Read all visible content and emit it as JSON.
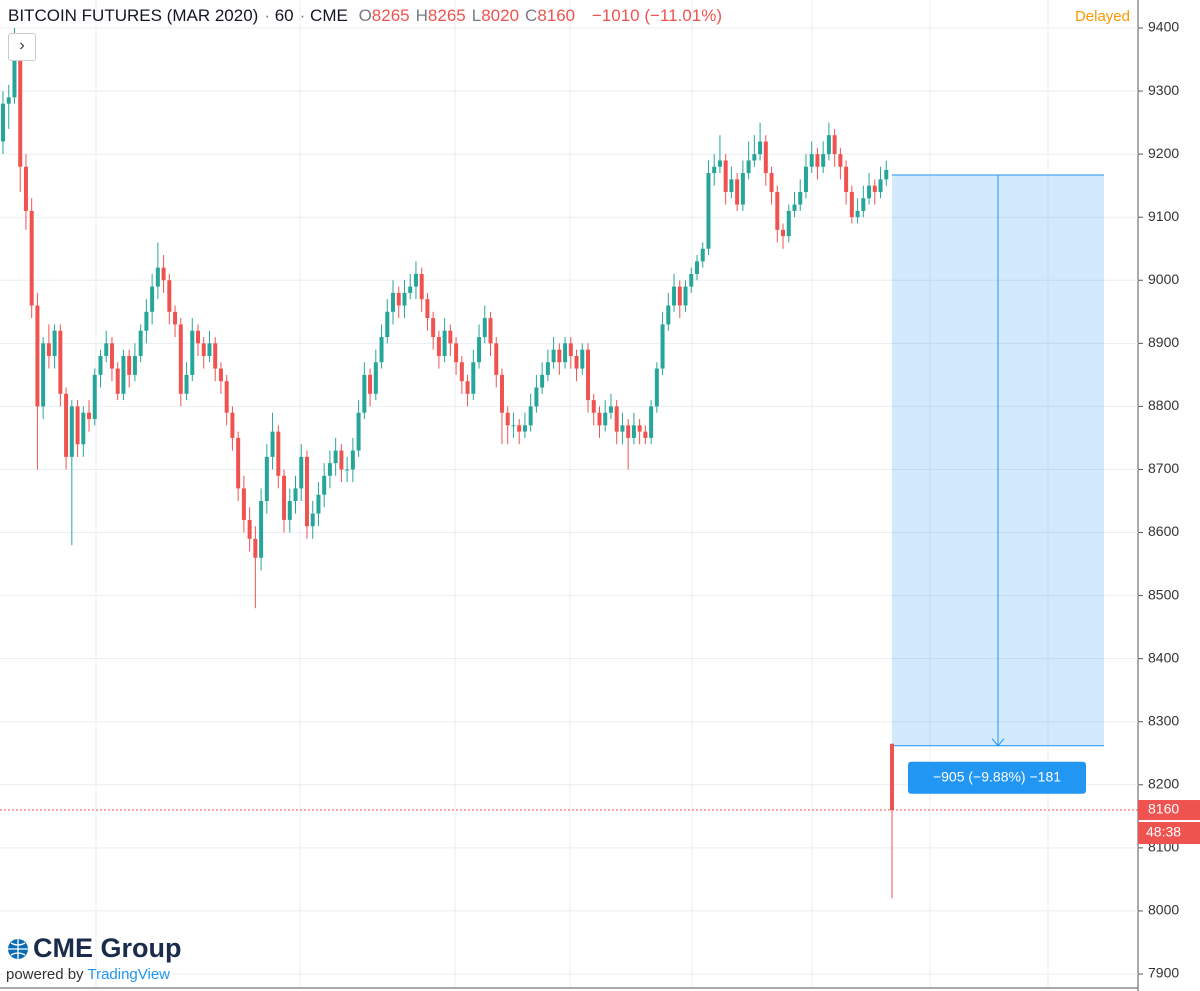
{
  "chart_data": {
    "type": "candlestick",
    "title": "BITCOIN FUTURES (MAR 2020)",
    "interval": "60",
    "exchange": "CME",
    "legend_ohlc": [
      {
        "key": "O",
        "value": 8265
      },
      {
        "key": "H",
        "value": 8265
      },
      {
        "key": "L",
        "value": 8020
      },
      {
        "key": "C",
        "value": 8160
      }
    ],
    "change": "−1010 (−11.01%)",
    "status": "Delayed",
    "countdown": "48:38",
    "logo": "CME Group",
    "powered_by": "powered by",
    "platform": "TradingView",
    "up_color": "#26a69a",
    "down_color": "#ef5350",
    "ylim": [
      7900,
      9400
    ],
    "yticks": [
      7900,
      8000,
      8100,
      8200,
      8300,
      8400,
      8500,
      8600,
      8700,
      8800,
      8900,
      9000,
      9100,
      9200,
      9300,
      9400
    ],
    "grid": true,
    "measure": {
      "from": 9167,
      "to": 8262,
      "label": "−905 (−9.88%) −181"
    },
    "ohlc": [
      [
        9220,
        9300,
        9200,
        9280
      ],
      [
        9280,
        9310,
        9240,
        9290
      ],
      [
        9290,
        9400,
        9280,
        9360
      ],
      [
        9360,
        9370,
        9140,
        9180
      ],
      [
        9180,
        9200,
        9080,
        9110
      ],
      [
        9110,
        9130,
        8940,
        8960
      ],
      [
        8960,
        8980,
        8700,
        8800
      ],
      [
        8800,
        8910,
        8780,
        8900
      ],
      [
        8900,
        8930,
        8860,
        8880
      ],
      [
        8880,
        8930,
        8860,
        8920
      ],
      [
        8920,
        8930,
        8800,
        8820
      ],
      [
        8820,
        8830,
        8700,
        8720
      ],
      [
        8720,
        8810,
        8580,
        8800
      ],
      [
        8800,
        8810,
        8720,
        8740
      ],
      [
        8740,
        8800,
        8720,
        8790
      ],
      [
        8790,
        8810,
        8760,
        8780
      ],
      [
        8780,
        8860,
        8770,
        8850
      ],
      [
        8850,
        8890,
        8830,
        8880
      ],
      [
        8880,
        8920,
        8870,
        8900
      ],
      [
        8900,
        8910,
        8840,
        8860
      ],
      [
        8860,
        8870,
        8810,
        8820
      ],
      [
        8820,
        8890,
        8810,
        8880
      ],
      [
        8880,
        8890,
        8830,
        8850
      ],
      [
        8850,
        8900,
        8840,
        8880
      ],
      [
        8880,
        8930,
        8870,
        8920
      ],
      [
        8920,
        8970,
        8900,
        8950
      ],
      [
        8950,
        9010,
        8930,
        8990
      ],
      [
        8990,
        9060,
        8970,
        9020
      ],
      [
        9020,
        9040,
        8980,
        9000
      ],
      [
        9000,
        9010,
        8930,
        8950
      ],
      [
        8950,
        8960,
        8910,
        8930
      ],
      [
        8930,
        8940,
        8800,
        8820
      ],
      [
        8820,
        8870,
        8810,
        8850
      ],
      [
        8850,
        8940,
        8840,
        8920
      ],
      [
        8920,
        8930,
        8880,
        8900
      ],
      [
        8900,
        8910,
        8860,
        8880
      ],
      [
        8880,
        8920,
        8870,
        8900
      ],
      [
        8900,
        8910,
        8840,
        8860
      ],
      [
        8860,
        8870,
        8820,
        8840
      ],
      [
        8840,
        8850,
        8770,
        8790
      ],
      [
        8790,
        8800,
        8730,
        8750
      ],
      [
        8750,
        8760,
        8650,
        8670
      ],
      [
        8670,
        8690,
        8600,
        8620
      ],
      [
        8620,
        8640,
        8570,
        8590
      ],
      [
        8590,
        8610,
        8480,
        8560
      ],
      [
        8560,
        8670,
        8540,
        8650
      ],
      [
        8650,
        8740,
        8630,
        8720
      ],
      [
        8720,
        8790,
        8700,
        8760
      ],
      [
        8760,
        8770,
        8670,
        8690
      ],
      [
        8690,
        8700,
        8600,
        8620
      ],
      [
        8620,
        8670,
        8600,
        8650
      ],
      [
        8650,
        8690,
        8630,
        8670
      ],
      [
        8670,
        8740,
        8650,
        8720
      ],
      [
        8720,
        8730,
        8590,
        8610
      ],
      [
        8610,
        8650,
        8590,
        8630
      ],
      [
        8630,
        8680,
        8610,
        8660
      ],
      [
        8660,
        8710,
        8640,
        8690
      ],
      [
        8690,
        8730,
        8670,
        8710
      ],
      [
        8710,
        8750,
        8690,
        8730
      ],
      [
        8730,
        8740,
        8680,
        8700
      ],
      [
        8700,
        8720,
        8680,
        8700
      ],
      [
        8700,
        8750,
        8680,
        8730
      ],
      [
        8730,
        8810,
        8720,
        8790
      ],
      [
        8790,
        8870,
        8780,
        8850
      ],
      [
        8850,
        8860,
        8800,
        8820
      ],
      [
        8820,
        8890,
        8810,
        8870
      ],
      [
        8870,
        8930,
        8860,
        8910
      ],
      [
        8910,
        8970,
        8900,
        8950
      ],
      [
        8950,
        9000,
        8930,
        8980
      ],
      [
        8980,
        8990,
        8940,
        8960
      ],
      [
        8960,
        9000,
        8940,
        8980
      ],
      [
        8980,
        9010,
        8970,
        8990
      ],
      [
        8990,
        9030,
        8970,
        9010
      ],
      [
        9010,
        9020,
        8950,
        8970
      ],
      [
        8970,
        8980,
        8920,
        8940
      ],
      [
        8940,
        8950,
        8890,
        8910
      ],
      [
        8910,
        8920,
        8860,
        8880
      ],
      [
        8880,
        8940,
        8870,
        8920
      ],
      [
        8920,
        8930,
        8880,
        8900
      ],
      [
        8900,
        8910,
        8850,
        8870
      ],
      [
        8870,
        8880,
        8820,
        8840
      ],
      [
        8840,
        8850,
        8800,
        8820
      ],
      [
        8820,
        8890,
        8810,
        8870
      ],
      [
        8870,
        8930,
        8860,
        8910
      ],
      [
        8910,
        8960,
        8900,
        8940
      ],
      [
        8940,
        8950,
        8880,
        8900
      ],
      [
        8900,
        8910,
        8830,
        8850
      ],
      [
        8850,
        8860,
        8740,
        8790
      ],
      [
        8790,
        8800,
        8740,
        8770
      ],
      [
        8770,
        8790,
        8750,
        8770
      ],
      [
        8770,
        8780,
        8740,
        8760
      ],
      [
        8760,
        8790,
        8750,
        8770
      ],
      [
        8770,
        8820,
        8760,
        8800
      ],
      [
        8800,
        8850,
        8790,
        8830
      ],
      [
        8830,
        8870,
        8820,
        8850
      ],
      [
        8850,
        8890,
        8840,
        8870
      ],
      [
        8870,
        8910,
        8860,
        8890
      ],
      [
        8890,
        8900,
        8850,
        8870
      ],
      [
        8870,
        8910,
        8860,
        8900
      ],
      [
        8900,
        8910,
        8860,
        8880
      ],
      [
        8880,
        8890,
        8840,
        8860
      ],
      [
        8860,
        8900,
        8850,
        8890
      ],
      [
        8890,
        8900,
        8790,
        8810
      ],
      [
        8810,
        8820,
        8770,
        8790
      ],
      [
        8790,
        8800,
        8750,
        8770
      ],
      [
        8770,
        8810,
        8760,
        8790
      ],
      [
        8790,
        8820,
        8780,
        8800
      ],
      [
        8800,
        8810,
        8740,
        8760
      ],
      [
        8760,
        8790,
        8740,
        8770
      ],
      [
        8770,
        8780,
        8700,
        8750
      ],
      [
        8750,
        8790,
        8740,
        8770
      ],
      [
        8770,
        8780,
        8740,
        8760
      ],
      [
        8760,
        8770,
        8740,
        8750
      ],
      [
        8750,
        8810,
        8740,
        8800
      ],
      [
        8800,
        8870,
        8790,
        8860
      ],
      [
        8860,
        8950,
        8850,
        8930
      ],
      [
        8930,
        8980,
        8920,
        8960
      ],
      [
        8960,
        9010,
        8950,
        8990
      ],
      [
        8990,
        9000,
        8940,
        8960
      ],
      [
        8960,
        9000,
        8950,
        8990
      ],
      [
        8990,
        9020,
        8980,
        9010
      ],
      [
        9010,
        9040,
        9000,
        9030
      ],
      [
        9030,
        9060,
        9020,
        9050
      ],
      [
        9050,
        9190,
        9040,
        9170
      ],
      [
        9170,
        9200,
        9150,
        9180
      ],
      [
        9180,
        9230,
        9170,
        9190
      ],
      [
        9190,
        9200,
        9120,
        9140
      ],
      [
        9140,
        9180,
        9130,
        9160
      ],
      [
        9160,
        9170,
        9110,
        9120
      ],
      [
        9120,
        9190,
        9110,
        9170
      ],
      [
        9170,
        9220,
        9160,
        9190
      ],
      [
        9190,
        9230,
        9180,
        9200
      ],
      [
        9200,
        9250,
        9190,
        9220
      ],
      [
        9220,
        9230,
        9150,
        9170
      ],
      [
        9170,
        9180,
        9120,
        9140
      ],
      [
        9140,
        9150,
        9060,
        9080
      ],
      [
        9080,
        9090,
        9050,
        9070
      ],
      [
        9070,
        9120,
        9060,
        9110
      ],
      [
        9110,
        9140,
        9100,
        9120
      ],
      [
        9120,
        9160,
        9110,
        9140
      ],
      [
        9140,
        9200,
        9130,
        9180
      ],
      [
        9180,
        9220,
        9170,
        9200
      ],
      [
        9200,
        9210,
        9160,
        9180
      ],
      [
        9180,
        9220,
        9170,
        9200
      ],
      [
        9200,
        9250,
        9190,
        9230
      ],
      [
        9230,
        9240,
        9180,
        9200
      ],
      [
        9200,
        9210,
        9160,
        9180
      ],
      [
        9180,
        9190,
        9120,
        9140
      ],
      [
        9140,
        9150,
        9090,
        9100
      ],
      [
        9100,
        9130,
        9090,
        9110
      ],
      [
        9110,
        9150,
        9100,
        9130
      ],
      [
        9130,
        9170,
        9120,
        9150
      ],
      [
        9150,
        9160,
        9120,
        9140
      ],
      [
        9140,
        9180,
        9130,
        9160
      ],
      [
        9160,
        9190,
        9150,
        9175
      ],
      [
        8265,
        8265,
        8020,
        8160
      ]
    ]
  }
}
